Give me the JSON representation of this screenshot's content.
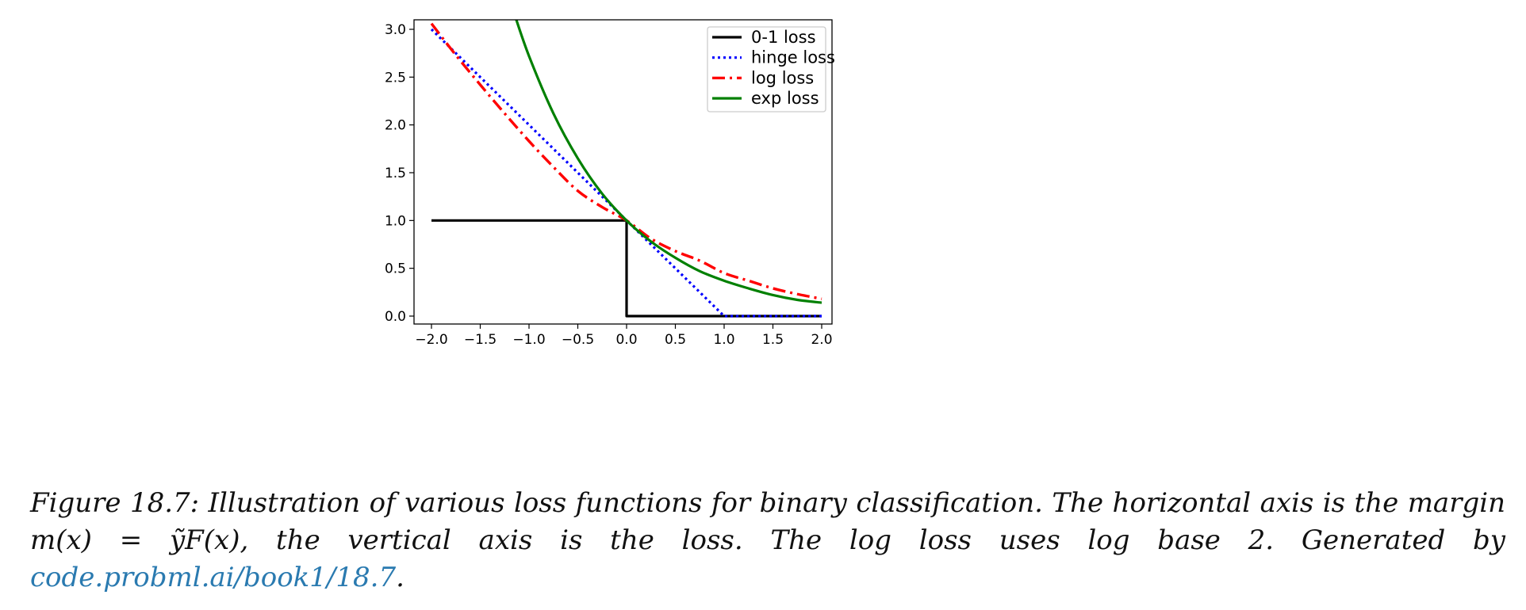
{
  "chart_data": {
    "type": "line",
    "title": "",
    "xlabel": "",
    "ylabel": "",
    "xlim": [
      -2.0,
      2.0
    ],
    "ylim": [
      -0.08,
      3.08
    ],
    "xticks": [
      "−2.0",
      "−1.5",
      "−1.0",
      "−0.5",
      "0.0",
      "0.5",
      "1.0",
      "1.5",
      "2.0"
    ],
    "xtick_values": [
      -2.0,
      -1.5,
      -1.0,
      -0.5,
      0.0,
      0.5,
      1.0,
      1.5,
      2.0
    ],
    "yticks": [
      "0.0",
      "0.5",
      "1.0",
      "1.5",
      "2.0",
      "2.5",
      "3.0"
    ],
    "ytick_values": [
      0.0,
      0.5,
      1.0,
      1.5,
      2.0,
      2.5,
      3.0
    ],
    "grid": false,
    "legend_position": "top-right",
    "series": [
      {
        "name": "0-1 loss",
        "color": "#000000",
        "style": "solid",
        "x": [
          -2.0,
          0.0,
          0.0,
          2.0
        ],
        "y": [
          1.0,
          1.0,
          0.0,
          0.0
        ]
      },
      {
        "name": "hinge loss",
        "color": "#0000ff",
        "style": "dotted",
        "x": [
          -2.0,
          -1.5,
          -1.0,
          -0.5,
          0.0,
          0.5,
          1.0,
          1.5,
          2.0
        ],
        "y": [
          3.0,
          2.5,
          2.0,
          1.5,
          1.0,
          0.5,
          0.0,
          0.0,
          0.0
        ]
      },
      {
        "name": "log loss",
        "color": "#ff0000",
        "style": "dashdot",
        "x": [
          -2.0,
          -1.75,
          -1.5,
          -1.25,
          -1.0,
          -0.75,
          -0.5,
          -0.25,
          0.0,
          0.25,
          0.5,
          0.75,
          1.0,
          1.25,
          1.5,
          1.75,
          2.0
        ],
        "y": [
          3.06,
          2.73,
          2.42,
          2.12,
          1.83,
          1.56,
          1.31,
          1.14,
          1.0,
          0.81,
          0.68,
          0.58,
          0.45,
          0.37,
          0.29,
          0.23,
          0.18
        ]
      },
      {
        "name": "exp loss",
        "color": "#008000",
        "style": "solid",
        "x": [
          -1.15,
          -1.0,
          -0.75,
          -0.5,
          -0.25,
          0.0,
          0.25,
          0.5,
          0.75,
          1.0,
          1.25,
          1.5,
          1.75,
          2.0
        ],
        "y": [
          3.16,
          2.72,
          2.12,
          1.65,
          1.28,
          1.0,
          0.78,
          0.61,
          0.47,
          0.37,
          0.29,
          0.22,
          0.17,
          0.14
        ]
      }
    ]
  },
  "caption": {
    "line1": "Figure 18.7: Illustration of various loss functions for binary classification. The horizontal axis is the",
    "line2": "margin m(x) = ỹF(x), the vertical axis is the loss. The log loss uses log base 2. Generated by",
    "link": "code.probml.ai/book1/18.7",
    "end": "."
  }
}
